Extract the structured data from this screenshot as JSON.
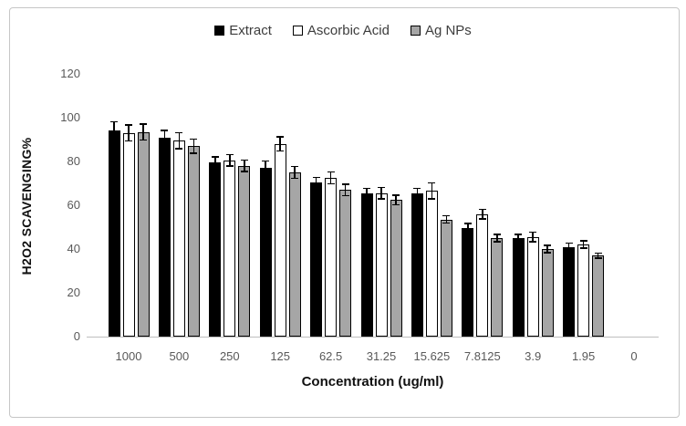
{
  "figure": {
    "background": "#ffffff",
    "border_color": "#c6c6c6"
  },
  "legend": {
    "items": [
      {
        "label": "Extract",
        "fill": "#000000",
        "border": "#000000"
      },
      {
        "label": "Ascorbic Acid",
        "fill": "#ffffff",
        "border": "#000000"
      },
      {
        "label": "Ag NPs",
        "fill": "#a6a6a6",
        "border": "#000000"
      }
    ]
  },
  "chart_data": {
    "type": "bar",
    "title": "",
    "xlabel": "Concentration (ug/ml)",
    "ylabel": "H2O2 SCAVENGING%",
    "categories": [
      "1000",
      "500",
      "250",
      "125",
      "62.5",
      "31.25",
      "15.625",
      "7.8125",
      "3.9",
      "1.95",
      "0"
    ],
    "series": [
      {
        "name": "Extract",
        "fill": "#000000",
        "border": "#000000",
        "values": [
          94,
          91,
          79.5,
          77,
          70.5,
          65.5,
          65.5,
          49.5,
          45,
          41,
          0
        ],
        "errors": [
          4.5,
          3.5,
          3,
          3.5,
          2.5,
          2.5,
          2.5,
          2.5,
          2,
          2,
          0
        ]
      },
      {
        "name": "Ascorbic Acid",
        "fill": "#ffffff",
        "border": "#000000",
        "values": [
          93,
          89.5,
          80.5,
          88,
          72.5,
          65.5,
          66.5,
          56,
          45.5,
          42,
          0
        ],
        "errors": [
          4,
          4,
          3,
          3.5,
          3,
          3,
          4,
          2.5,
          2.5,
          2,
          0
        ]
      },
      {
        "name": "Ag NPs",
        "fill": "#a6a6a6",
        "border": "#000000",
        "values": [
          93.5,
          87,
          78,
          75,
          67,
          62.5,
          53.5,
          45,
          40,
          37,
          0
        ],
        "errors": [
          4,
          3.5,
          3,
          3,
          3,
          2.5,
          2,
          2,
          2,
          1.5,
          0
        ]
      }
    ],
    "ylim": [
      0,
      120
    ],
    "yticks": [
      0,
      20,
      40,
      60,
      80,
      100,
      120
    ],
    "grid": false,
    "error_bars": true,
    "legend_position": "top-center",
    "axis_line_color": "#bfbfbf",
    "tick_label_color": "#595959"
  }
}
